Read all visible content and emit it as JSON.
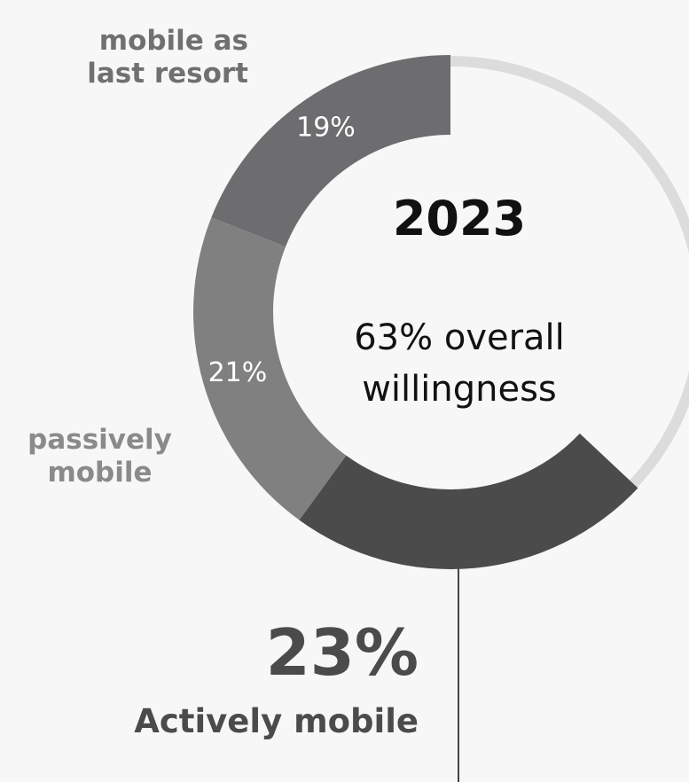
{
  "chart_data": {
    "type": "donut",
    "title": "2023",
    "subtitle": "63% overall willingness",
    "categories": [
      "mobile as last resort",
      "passively mobile",
      "Actively mobile"
    ],
    "values": [
      19,
      21,
      23
    ],
    "value_labels": [
      "19%",
      "21%",
      "23%"
    ],
    "colors": [
      "#6d6d70",
      "#808080",
      "#4b4b4b"
    ]
  }
}
